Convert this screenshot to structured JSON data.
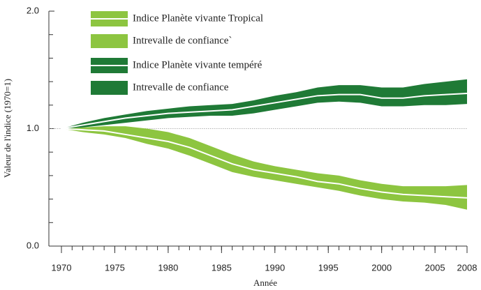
{
  "chart_data": {
    "type": "band-line",
    "x_label": "Année",
    "y_label": "Valeur de l'indice (1970=1)",
    "x": [
      1970,
      1972,
      1974,
      1976,
      1978,
      1980,
      1982,
      1984,
      1986,
      1988,
      1990,
      1992,
      1994,
      1996,
      1998,
      2000,
      2002,
      2004,
      2006,
      2008
    ],
    "series": [
      {
        "name": "Indice Planète vivante Tropical",
        "kind": "line",
        "color": "#ffffff",
        "band_color": "#8dc540",
        "values": [
          1.0,
          0.99,
          0.98,
          0.95,
          0.92,
          0.89,
          0.84,
          0.77,
          0.7,
          0.65,
          0.62,
          0.59,
          0.55,
          0.53,
          0.49,
          0.46,
          0.44,
          0.43,
          0.42,
          0.41
        ]
      },
      {
        "name": "Intrevalle de confiance`",
        "kind": "band",
        "color": "#8dc540",
        "upper": [
          1.0,
          1.01,
          1.02,
          1.02,
          1.0,
          0.97,
          0.92,
          0.85,
          0.78,
          0.72,
          0.68,
          0.65,
          0.62,
          0.6,
          0.56,
          0.53,
          0.51,
          0.51,
          0.51,
          0.52
        ],
        "lower": [
          1.0,
          0.97,
          0.95,
          0.92,
          0.87,
          0.83,
          0.77,
          0.7,
          0.63,
          0.59,
          0.56,
          0.53,
          0.5,
          0.47,
          0.43,
          0.4,
          0.38,
          0.37,
          0.35,
          0.31
        ]
      },
      {
        "name": "Indice Planète vivante tempéré",
        "kind": "line",
        "color": "#ffffff",
        "band_color": "#1f7a36",
        "values": [
          1.0,
          1.03,
          1.06,
          1.09,
          1.11,
          1.13,
          1.14,
          1.15,
          1.16,
          1.19,
          1.22,
          1.25,
          1.28,
          1.29,
          1.29,
          1.26,
          1.26,
          1.28,
          1.29,
          1.3
        ]
      },
      {
        "name": "Intrevalle de confiance",
        "kind": "band",
        "color": "#1f7a36",
        "upper": [
          1.0,
          1.05,
          1.09,
          1.12,
          1.15,
          1.17,
          1.19,
          1.2,
          1.21,
          1.24,
          1.28,
          1.31,
          1.35,
          1.37,
          1.37,
          1.35,
          1.35,
          1.38,
          1.4,
          1.42
        ],
        "lower": [
          1.0,
          1.01,
          1.03,
          1.05,
          1.07,
          1.09,
          1.1,
          1.11,
          1.11,
          1.13,
          1.16,
          1.19,
          1.22,
          1.23,
          1.22,
          1.19,
          1.19,
          1.2,
          1.2,
          1.21
        ]
      }
    ],
    "reference_line": 1,
    "xlim": [
      1970,
      2008
    ],
    "xticks": [
      1970,
      1975,
      1980,
      1985,
      1990,
      1995,
      2000,
      2005,
      2008
    ],
    "ylim": [
      0,
      2
    ],
    "yticks": [
      {
        "value": 0,
        "label": "0.0"
      },
      {
        "value": 1,
        "label": "1.0"
      },
      {
        "value": 2,
        "label": "2.0"
      }
    ]
  }
}
